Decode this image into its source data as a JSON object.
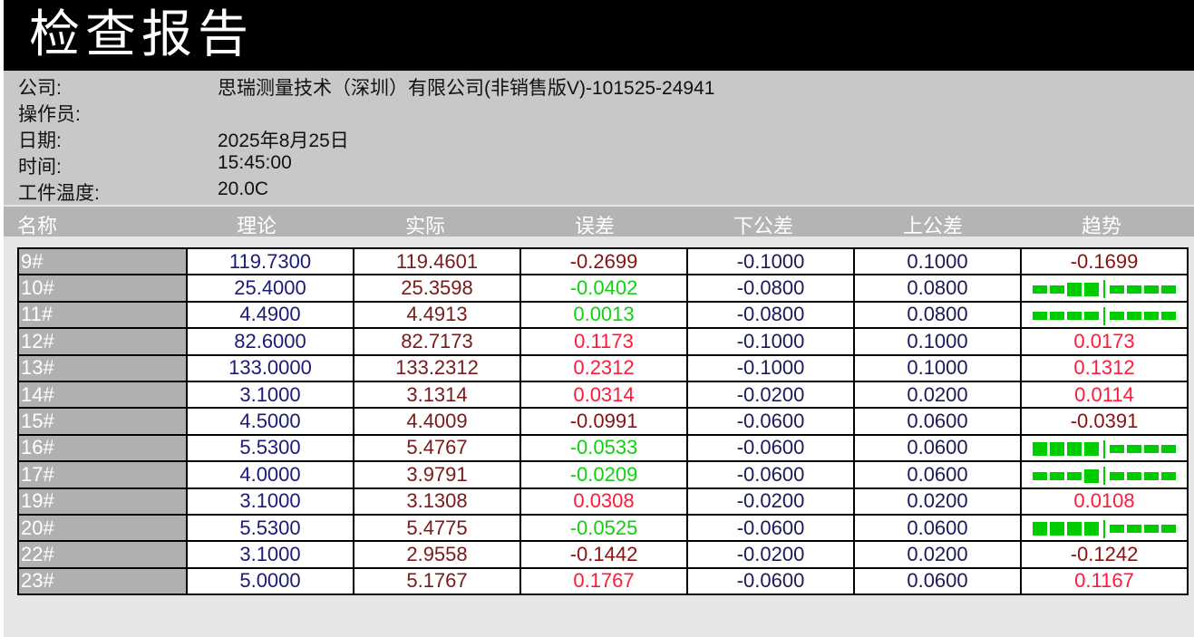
{
  "title": "检查报告",
  "info": [
    {
      "label": "公司:",
      "value": "思瑞测量技术（深圳）有限公司(非销售版V)-101525-24941"
    },
    {
      "label": "操作员:",
      "value": ""
    },
    {
      "label": "日期:",
      "value": "2025年8月25日"
    },
    {
      "label": "时间:",
      "value": "15:45:00"
    },
    {
      "label": "工件温度:",
      "value": "20.0C"
    }
  ],
  "columns": [
    "名称",
    "理论",
    "实际",
    "误差",
    "下公差",
    "上公差",
    "趋势"
  ],
  "colors": {
    "out_negative": "#8b1010",
    "out_positive": "#ff1a3a",
    "in_tolerance": "#10d010",
    "trend_bar": "#00cc00"
  },
  "rows": [
    {
      "name": "9#",
      "nominal": "119.7300",
      "actual": "119.4601",
      "error": "-0.2699",
      "lower": "-0.1000",
      "upper": "0.1000",
      "trend": "-0.1699",
      "status": "neg"
    },
    {
      "name": "10#",
      "nominal": "25.4000",
      "actual": "25.3598",
      "error": "-0.0402",
      "lower": "-0.0800",
      "upper": "0.0800",
      "trend_bar": -0.5,
      "status": "ok"
    },
    {
      "name": "11#",
      "nominal": "4.4900",
      "actual": "4.4913",
      "error": "0.0013",
      "lower": "-0.0800",
      "upper": "0.0800",
      "trend_bar": 0.0,
      "status": "ok"
    },
    {
      "name": "12#",
      "nominal": "82.6000",
      "actual": "82.7173",
      "error": "0.1173",
      "lower": "-0.1000",
      "upper": "0.1000",
      "trend": "0.0173",
      "status": "pos"
    },
    {
      "name": "13#",
      "nominal": "133.0000",
      "actual": "133.2312",
      "error": "0.2312",
      "lower": "-0.1000",
      "upper": "0.1000",
      "trend": "0.1312",
      "status": "pos"
    },
    {
      "name": "14#",
      "nominal": "3.1000",
      "actual": "3.1314",
      "error": "0.0314",
      "lower": "-0.0200",
      "upper": "0.0200",
      "trend": "0.0114",
      "status": "pos"
    },
    {
      "name": "15#",
      "nominal": "4.5000",
      "actual": "4.4009",
      "error": "-0.0991",
      "lower": "-0.0600",
      "upper": "0.0600",
      "trend": "-0.0391",
      "status": "neg"
    },
    {
      "name": "16#",
      "nominal": "5.5300",
      "actual": "5.4767",
      "error": "-0.0533",
      "lower": "-0.0600",
      "upper": "0.0600",
      "trend_bar": -0.89,
      "status": "ok"
    },
    {
      "name": "17#",
      "nominal": "4.0000",
      "actual": "3.9791",
      "error": "-0.0209",
      "lower": "-0.0600",
      "upper": "0.0600",
      "trend_bar": -0.35,
      "status": "ok"
    },
    {
      "name": "19#",
      "nominal": "3.1000",
      "actual": "3.1308",
      "error": "0.0308",
      "lower": "-0.0200",
      "upper": "0.0200",
      "trend": "0.0108",
      "status": "pos"
    },
    {
      "name": "20#",
      "nominal": "5.5300",
      "actual": "5.4775",
      "error": "-0.0525",
      "lower": "-0.0600",
      "upper": "0.0600",
      "trend_bar": -0.875,
      "status": "ok"
    },
    {
      "name": "22#",
      "nominal": "3.1000",
      "actual": "2.9558",
      "error": "-0.1442",
      "lower": "-0.0200",
      "upper": "0.0200",
      "trend": "-0.1242",
      "status": "neg"
    },
    {
      "name": "23#",
      "nominal": "5.0000",
      "actual": "5.1767",
      "error": "0.1767",
      "lower": "-0.0600",
      "upper": "0.0600",
      "trend": "0.1167",
      "status": "pos"
    }
  ]
}
